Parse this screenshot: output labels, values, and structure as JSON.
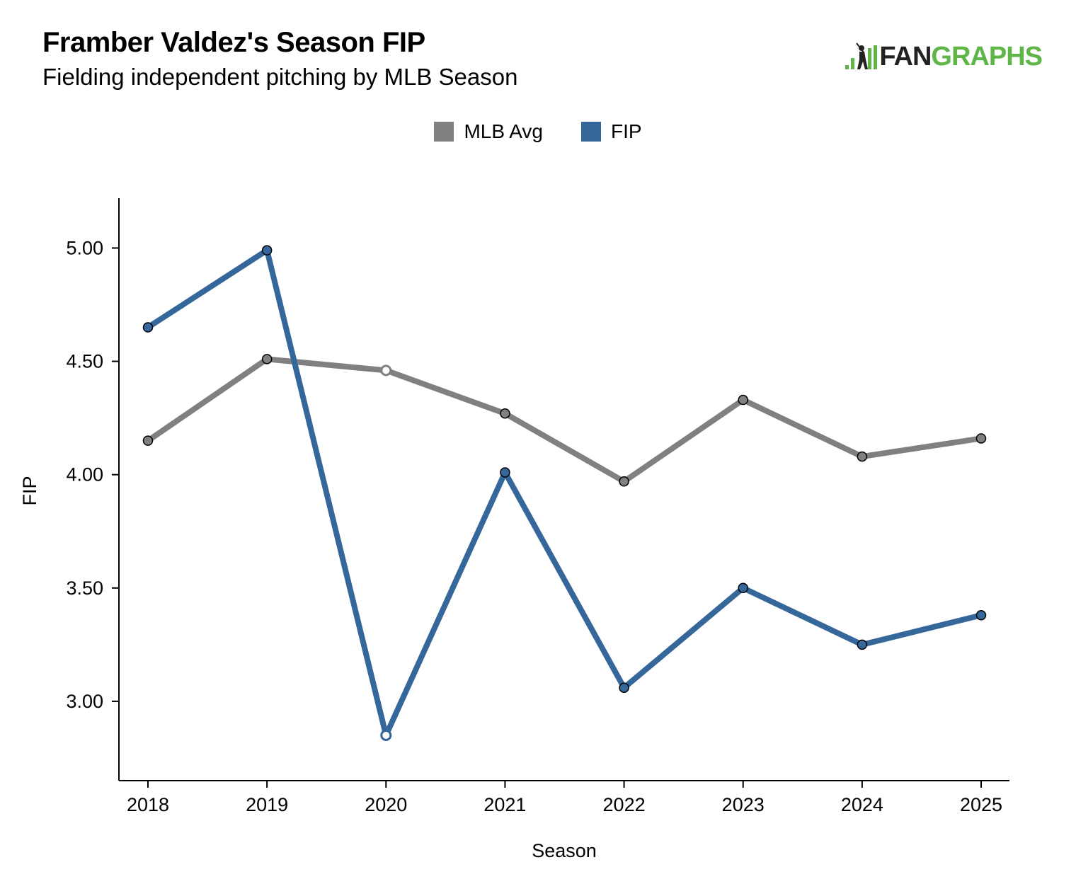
{
  "header": {
    "title": "Framber Valdez's Season FIP",
    "subtitle": "Fielding independent pitching by MLB Season"
  },
  "logo": {
    "word_dark": "FAN",
    "word_green": "GRAPHS",
    "icon": "fangraphs-batter-icon",
    "green": "#5fb547"
  },
  "chart_data": {
    "type": "line",
    "title": "Framber Valdez's Season FIP",
    "subtitle": "Fielding independent pitching by MLB Season",
    "xlabel": "Season",
    "ylabel": "FIP",
    "categories": [
      "2018",
      "2019",
      "2020",
      "2021",
      "2022",
      "2023",
      "2024",
      "2025"
    ],
    "y_ticks": [
      "3.00",
      "3.50",
      "4.00",
      "4.50",
      "5.00"
    ],
    "y_tick_values": [
      3.0,
      3.5,
      4.0,
      4.5,
      5.0
    ],
    "ylim": [
      2.65,
      5.22
    ],
    "legend_position": "top-center",
    "series": [
      {
        "name": "MLB Avg",
        "color": "#808080",
        "values": [
          4.15,
          4.51,
          4.46,
          4.27,
          3.97,
          4.33,
          4.08,
          4.16
        ],
        "hollow_markers": [
          "2020"
        ]
      },
      {
        "name": "FIP",
        "color": "#35679a",
        "values": [
          4.65,
          4.99,
          2.85,
          4.01,
          3.06,
          3.5,
          3.25,
          3.38
        ],
        "hollow_markers": [
          "2020"
        ]
      }
    ]
  }
}
